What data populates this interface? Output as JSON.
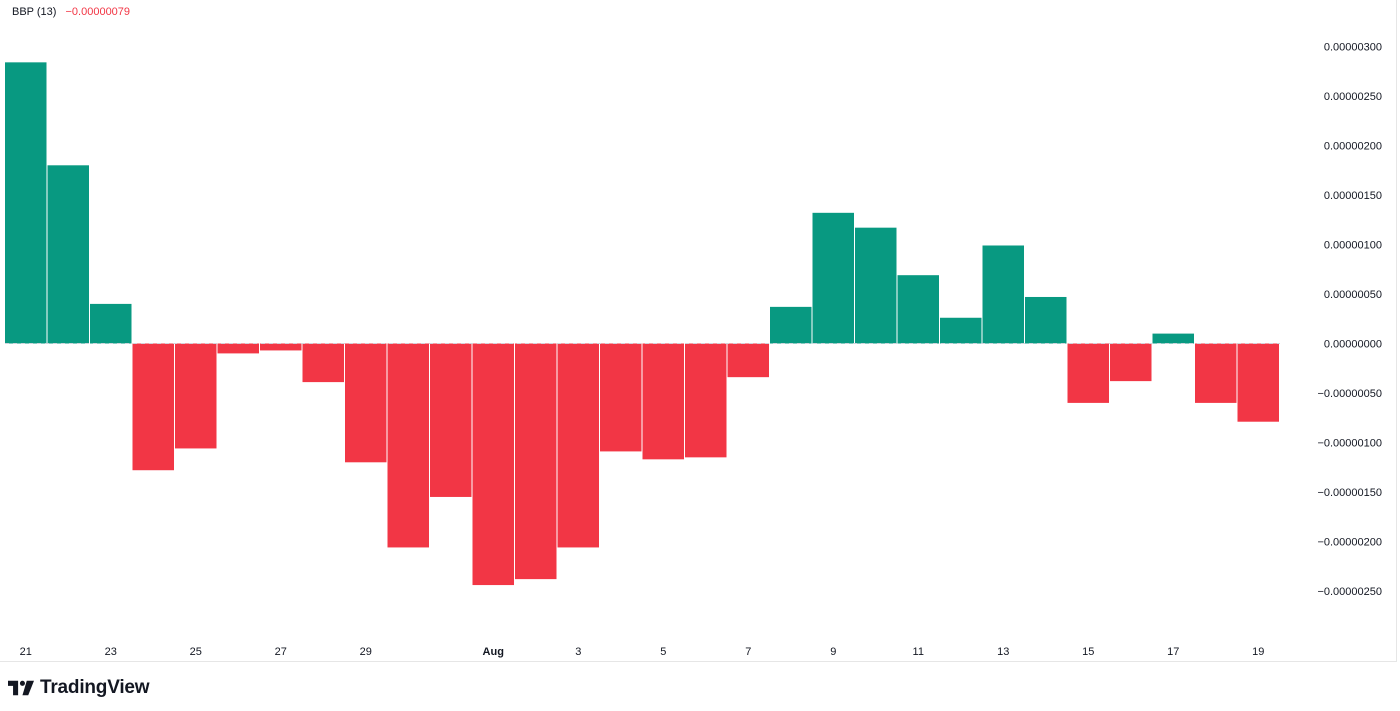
{
  "legend": {
    "indicator": "BBP (13)",
    "value": "−0.00000079",
    "value_color": "#f23645"
  },
  "brand": {
    "name": "TradingView",
    "icon": "tradingview-logo-icon"
  },
  "colors": {
    "positive": "#089981",
    "negative": "#f23645",
    "zero_line": "#b2b5be",
    "axis_text": "#131722"
  },
  "chart_data": {
    "type": "bar",
    "title": "",
    "xlabel": "",
    "ylabel": "",
    "ylim": [
      -2.8e-06,
      3.1e-06
    ],
    "grid": false,
    "x": [
      "Jul 21",
      "Jul 22",
      "Jul 23",
      "Jul 24",
      "Jul 25",
      "Jul 26",
      "Jul 27",
      "Jul 28",
      "Jul 29",
      "Jul 30",
      "Jul 31",
      "Aug 1",
      "Aug 2",
      "Aug 3",
      "Aug 4",
      "Aug 5",
      "Aug 6",
      "Aug 7",
      "Aug 8",
      "Aug 9",
      "Aug 10",
      "Aug 11",
      "Aug 12",
      "Aug 13",
      "Aug 14",
      "Aug 15",
      "Aug 16",
      "Aug 17",
      "Aug 18",
      "Aug 19"
    ],
    "series": [
      {
        "values": [
          2.84e-06,
          1.8e-06,
          4e-07,
          -1.28e-06,
          -1.06e-06,
          -1e-07,
          -7e-08,
          -3.9e-07,
          -1.2e-06,
          -2.06e-06,
          -1.55e-06,
          -2.44e-06,
          -2.38e-06,
          -2.06e-06,
          -1.09e-06,
          -1.17e-06,
          -1.15e-06,
          -3.4e-07,
          3.7e-07,
          1.32e-06,
          1.17e-06,
          6.9e-07,
          2.6e-07,
          9.9e-07,
          4.7e-07,
          -6e-07,
          -3.8e-07,
          1e-07,
          -6e-07,
          -7.9e-07
        ]
      }
    ],
    "x_tick_labels": [
      "21",
      "23",
      "25",
      "27",
      "29",
      "Aug",
      "3",
      "5",
      "7",
      "9",
      "11",
      "13",
      "15",
      "17",
      "19"
    ],
    "x_tick_indices": [
      0,
      2,
      4,
      6,
      8,
      11,
      13,
      15,
      17,
      19,
      21,
      23,
      25,
      27,
      29
    ],
    "y_ticks": [
      3e-06,
      2.5e-06,
      2e-06,
      1.5e-06,
      1e-06,
      5e-07,
      0,
      -5e-07,
      -1e-06,
      -1.5e-06,
      -2e-06,
      -2.5e-06
    ],
    "y_tick_labels": [
      "0.00000300",
      "0.00000250",
      "0.00000200",
      "0.00000150",
      "0.00000100",
      "0.00000050",
      "0.00000000",
      "−0.00000050",
      "−0.00000100",
      "−0.00000150",
      "−0.00000200",
      "−0.00000250"
    ]
  }
}
